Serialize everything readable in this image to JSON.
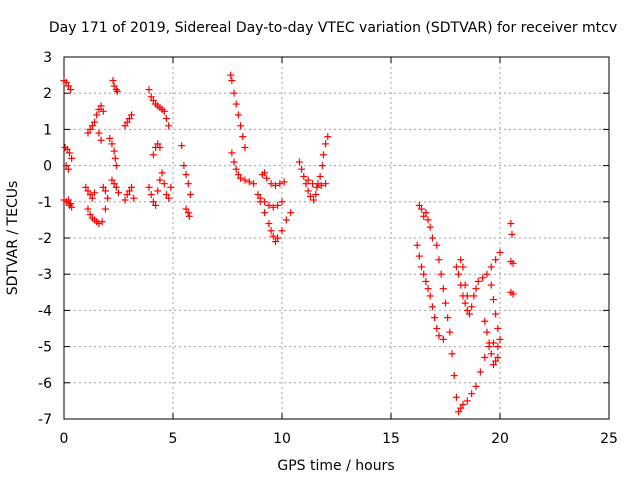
{
  "chart_data": {
    "type": "scatter",
    "title": "Day 171 of 2019, Sidereal Day-to-day VTEC variation (SDTVAR) for receiver mtcv",
    "xlabel": "GPS time / hours",
    "ylabel": "SDTVAR / TECUs",
    "xlim": [
      0,
      25
    ],
    "ylim": [
      -7,
      3
    ],
    "xticks": [
      0,
      5,
      10,
      15,
      20,
      25
    ],
    "yticks": [
      3,
      2,
      1,
      0,
      -1,
      -2,
      -3,
      -4,
      -5,
      -6,
      -7
    ],
    "grid": true,
    "marker": "+",
    "marker_color": "#ff0000",
    "series": [
      {
        "values": [
          [
            0.0,
            2.35
          ],
          [
            0.1,
            2.3
          ],
          [
            0.2,
            2.2
          ],
          [
            0.3,
            2.1
          ],
          [
            0.05,
            0.5
          ],
          [
            0.15,
            0.45
          ],
          [
            0.25,
            0.35
          ],
          [
            0.35,
            0.2
          ],
          [
            0.1,
            0.0
          ],
          [
            0.2,
            -0.1
          ],
          [
            0.0,
            -0.95
          ],
          [
            0.1,
            -1.0
          ],
          [
            0.2,
            -0.95
          ],
          [
            0.3,
            -1.05
          ],
          [
            0.35,
            -1.15
          ],
          [
            0.25,
            -1.1
          ],
          [
            1.0,
            -0.6
          ],
          [
            1.1,
            -0.7
          ],
          [
            1.2,
            -0.8
          ],
          [
            1.3,
            -0.9
          ],
          [
            1.4,
            -0.75
          ],
          [
            1.1,
            -1.2
          ],
          [
            1.2,
            -1.35
          ],
          [
            1.3,
            -1.45
          ],
          [
            1.4,
            -1.5
          ],
          [
            1.5,
            -1.55
          ],
          [
            1.6,
            -1.6
          ],
          [
            1.75,
            -1.55
          ],
          [
            1.1,
            0.9
          ],
          [
            1.2,
            1.0
          ],
          [
            1.3,
            1.1
          ],
          [
            1.4,
            1.2
          ],
          [
            1.5,
            1.4
          ],
          [
            1.6,
            1.55
          ],
          [
            1.7,
            1.65
          ],
          [
            1.8,
            1.5
          ],
          [
            1.6,
            0.9
          ],
          [
            1.7,
            0.7
          ],
          [
            1.8,
            -0.6
          ],
          [
            1.9,
            -0.7
          ],
          [
            2.0,
            -0.9
          ],
          [
            1.9,
            -1.2
          ],
          [
            2.1,
            0.75
          ],
          [
            2.2,
            0.6
          ],
          [
            2.3,
            0.4
          ],
          [
            2.35,
            0.2
          ],
          [
            2.4,
            0.0
          ],
          [
            2.25,
            2.35
          ],
          [
            2.3,
            2.2
          ],
          [
            2.4,
            2.1
          ],
          [
            2.45,
            2.05
          ],
          [
            2.2,
            -0.4
          ],
          [
            2.3,
            -0.5
          ],
          [
            2.4,
            -0.6
          ],
          [
            2.5,
            -0.75
          ],
          [
            2.8,
            -0.95
          ],
          [
            2.9,
            -0.8
          ],
          [
            3.0,
            -0.7
          ],
          [
            3.1,
            -0.6
          ],
          [
            3.2,
            -0.9
          ],
          [
            2.8,
            1.1
          ],
          [
            2.9,
            1.2
          ],
          [
            3.0,
            1.3
          ],
          [
            3.1,
            1.4
          ],
          [
            3.9,
            2.1
          ],
          [
            4.0,
            1.9
          ],
          [
            4.1,
            1.8
          ],
          [
            4.2,
            1.7
          ],
          [
            4.3,
            1.65
          ],
          [
            4.4,
            1.6
          ],
          [
            4.5,
            1.55
          ],
          [
            4.6,
            1.5
          ],
          [
            4.7,
            1.3
          ],
          [
            4.8,
            1.1
          ],
          [
            3.9,
            -0.6
          ],
          [
            4.0,
            -0.8
          ],
          [
            4.1,
            -1.0
          ],
          [
            4.2,
            -1.1
          ],
          [
            4.3,
            -0.7
          ],
          [
            4.4,
            -0.4
          ],
          [
            4.5,
            -0.2
          ],
          [
            4.6,
            -0.5
          ],
          [
            4.7,
            -0.8
          ],
          [
            4.8,
            -0.9
          ],
          [
            4.9,
            -0.6
          ],
          [
            4.1,
            0.3
          ],
          [
            4.2,
            0.5
          ],
          [
            4.3,
            0.6
          ],
          [
            4.4,
            0.5
          ],
          [
            5.4,
            0.55
          ],
          [
            5.5,
            0.0
          ],
          [
            5.6,
            -0.25
          ],
          [
            5.7,
            -0.5
          ],
          [
            5.8,
            -0.8
          ],
          [
            5.6,
            -1.2
          ],
          [
            5.7,
            -1.3
          ],
          [
            5.75,
            -1.4
          ],
          [
            7.65,
            2.5
          ],
          [
            7.7,
            2.35
          ],
          [
            7.8,
            2.0
          ],
          [
            7.9,
            1.7
          ],
          [
            8.0,
            1.4
          ],
          [
            8.1,
            1.1
          ],
          [
            8.2,
            0.8
          ],
          [
            8.3,
            0.5
          ],
          [
            7.7,
            0.35
          ],
          [
            7.8,
            0.1
          ],
          [
            7.9,
            -0.1
          ],
          [
            8.0,
            -0.25
          ],
          [
            8.1,
            -0.35
          ],
          [
            8.3,
            -0.4
          ],
          [
            8.5,
            -0.45
          ],
          [
            8.7,
            -0.5
          ],
          [
            8.9,
            -0.8
          ],
          [
            9.0,
            -1.0
          ],
          [
            9.2,
            -1.3
          ],
          [
            9.4,
            -1.6
          ],
          [
            9.5,
            -1.8
          ],
          [
            9.6,
            -1.95
          ],
          [
            9.7,
            -2.1
          ],
          [
            9.8,
            -2.0
          ],
          [
            10.0,
            -1.8
          ],
          [
            10.2,
            -1.5
          ],
          [
            10.4,
            -1.3
          ],
          [
            9.1,
            -0.25
          ],
          [
            9.2,
            -0.2
          ],
          [
            9.3,
            -0.35
          ],
          [
            9.5,
            -0.5
          ],
          [
            9.7,
            -0.55
          ],
          [
            9.9,
            -0.5
          ],
          [
            10.1,
            -0.45
          ],
          [
            9.0,
            -0.9
          ],
          [
            9.2,
            -1.0
          ],
          [
            9.4,
            -1.1
          ],
          [
            9.6,
            -1.15
          ],
          [
            9.8,
            -1.1
          ],
          [
            10.0,
            -1.0
          ],
          [
            10.8,
            0.1
          ],
          [
            10.9,
            -0.1
          ],
          [
            11.0,
            -0.3
          ],
          [
            11.1,
            -0.5
          ],
          [
            11.2,
            -0.7
          ],
          [
            11.3,
            -0.85
          ],
          [
            11.45,
            -0.95
          ],
          [
            11.55,
            -0.8
          ],
          [
            11.65,
            -0.5
          ],
          [
            11.75,
            -0.3
          ],
          [
            11.85,
            0.0
          ],
          [
            11.9,
            0.3
          ],
          [
            12.0,
            0.6
          ],
          [
            12.1,
            0.8
          ],
          [
            11.2,
            -0.4
          ],
          [
            11.4,
            -0.5
          ],
          [
            11.6,
            -0.6
          ],
          [
            11.8,
            -0.55
          ],
          [
            12.0,
            -0.5
          ],
          [
            16.3,
            -1.1
          ],
          [
            16.4,
            -1.2
          ],
          [
            16.5,
            -1.4
          ],
          [
            16.6,
            -1.3
          ],
          [
            16.7,
            -1.5
          ],
          [
            16.8,
            -1.7
          ],
          [
            16.9,
            -2.0
          ],
          [
            16.2,
            -2.2
          ],
          [
            16.3,
            -2.5
          ],
          [
            16.4,
            -2.8
          ],
          [
            16.5,
            -3.0
          ],
          [
            16.6,
            -3.2
          ],
          [
            16.7,
            -3.4
          ],
          [
            16.8,
            -3.6
          ],
          [
            16.9,
            -3.9
          ],
          [
            17.0,
            -4.2
          ],
          [
            17.1,
            -4.5
          ],
          [
            17.2,
            -4.7
          ],
          [
            17.4,
            -4.8
          ],
          [
            17.1,
            -2.2
          ],
          [
            17.2,
            -2.6
          ],
          [
            17.3,
            -3.0
          ],
          [
            17.4,
            -3.4
          ],
          [
            17.5,
            -3.8
          ],
          [
            17.6,
            -4.2
          ],
          [
            17.7,
            -4.6
          ],
          [
            17.8,
            -5.2
          ],
          [
            17.9,
            -5.8
          ],
          [
            18.0,
            -6.4
          ],
          [
            18.1,
            -6.8
          ],
          [
            18.2,
            -6.7
          ],
          [
            18.3,
            -6.6
          ],
          [
            18.5,
            -6.5
          ],
          [
            18.7,
            -6.3
          ],
          [
            18.9,
            -6.1
          ],
          [
            19.1,
            -5.7
          ],
          [
            19.3,
            -5.3
          ],
          [
            19.5,
            -5.0
          ],
          [
            19.7,
            -4.9
          ],
          [
            19.9,
            -5.0
          ],
          [
            18.0,
            -2.8
          ],
          [
            18.1,
            -3.0
          ],
          [
            18.2,
            -3.3
          ],
          [
            18.3,
            -3.6
          ],
          [
            18.4,
            -3.8
          ],
          [
            18.5,
            -4.0
          ],
          [
            18.6,
            -4.1
          ],
          [
            18.7,
            -3.9
          ],
          [
            18.8,
            -3.6
          ],
          [
            18.9,
            -3.4
          ],
          [
            19.0,
            -3.2
          ],
          [
            19.2,
            -3.1
          ],
          [
            19.4,
            -3.0
          ],
          [
            19.6,
            -2.8
          ],
          [
            19.8,
            -2.6
          ],
          [
            20.0,
            -2.4
          ],
          [
            19.3,
            -4.3
          ],
          [
            19.4,
            -4.6
          ],
          [
            19.5,
            -4.9
          ],
          [
            19.6,
            -5.2
          ],
          [
            19.7,
            -5.5
          ],
          [
            19.8,
            -5.4
          ],
          [
            19.9,
            -5.3
          ],
          [
            19.6,
            -3.3
          ],
          [
            19.7,
            -3.7
          ],
          [
            19.8,
            -4.1
          ],
          [
            19.9,
            -4.5
          ],
          [
            20.0,
            -4.8
          ],
          [
            18.2,
            -2.6
          ],
          [
            18.3,
            -2.8
          ],
          [
            18.4,
            -3.3
          ],
          [
            18.5,
            -3.6
          ],
          [
            20.5,
            -1.6
          ],
          [
            20.55,
            -1.9
          ],
          [
            20.5,
            -2.65
          ],
          [
            20.6,
            -2.7
          ],
          [
            20.5,
            -3.5
          ],
          [
            20.6,
            -3.55
          ]
        ]
      }
    ]
  }
}
